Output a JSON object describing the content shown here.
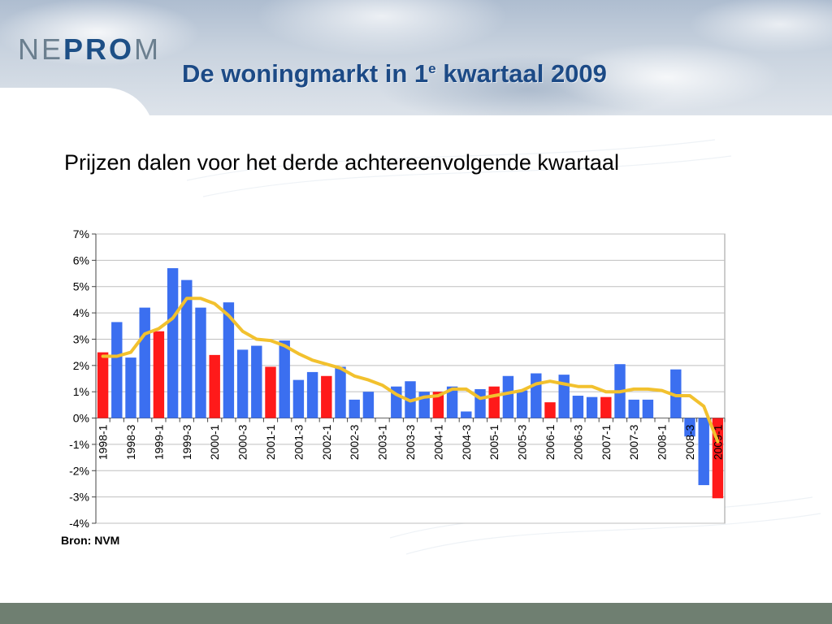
{
  "header": {
    "logo_pre": "NE",
    "logo_mid": "PRO",
    "logo_post": "M",
    "title_main": "De woningmarkt in 1",
    "title_sup": "e",
    "title_rest": " kwartaal 2009"
  },
  "subtitle": "Prijzen dalen voor het derde achtereenvolgende kwartaal",
  "source": "Bron: NVM",
  "colors": {
    "bar_blue": "#3b6ff0",
    "bar_red": "#ff1a1a",
    "line": "#f2c12e",
    "grid": "#bfbfbf",
    "footer": "#6f7f71",
    "title": "#1c4a86"
  },
  "chart_data": {
    "type": "bar",
    "ylim": [
      -4,
      7
    ],
    "yticks": [
      "7%",
      "6%",
      "5%",
      "4%",
      "3%",
      "2%",
      "1%",
      "0%",
      "-1%",
      "-2%",
      "-3%",
      "-4%"
    ],
    "grid": true,
    "x_tick_labels": [
      "1998-1",
      "1998-3",
      "1999-1",
      "1999-3",
      "2000-1",
      "2000-3",
      "2001-1",
      "2001-3",
      "2002-1",
      "2002-3",
      "2003-1",
      "2003-3",
      "2004-1",
      "2004-3",
      "2005-1",
      "2005-3",
      "2006-1",
      "2006-3",
      "2007-1",
      "2007-3",
      "2008-1",
      "2008-3",
      "2009-1"
    ],
    "quarters": [
      "1998-1",
      "1998-2",
      "1998-3",
      "1998-4",
      "1999-1",
      "1999-2",
      "1999-3",
      "1999-4",
      "2000-1",
      "2000-2",
      "2000-3",
      "2000-4",
      "2001-1",
      "2001-2",
      "2001-3",
      "2001-4",
      "2002-1",
      "2002-2",
      "2002-3",
      "2002-4",
      "2003-1",
      "2003-2",
      "2003-3",
      "2003-4",
      "2004-1",
      "2004-2",
      "2004-3",
      "2004-4",
      "2005-1",
      "2005-2",
      "2005-3",
      "2005-4",
      "2006-1",
      "2006-2",
      "2006-3",
      "2006-4",
      "2007-1",
      "2007-2",
      "2007-3",
      "2007-4",
      "2008-1",
      "2008-2",
      "2008-3",
      "2008-4",
      "2009-1"
    ],
    "series": [
      {
        "values": [
          2.5,
          3.65,
          2.3,
          4.2,
          3.3,
          5.7,
          5.25,
          4.2,
          2.4,
          4.4,
          2.6,
          2.75,
          1.95,
          2.95,
          1.45,
          1.75,
          1.6,
          1.95,
          0.7,
          1.0,
          0.0,
          1.2,
          1.4,
          1.0,
          1.0,
          1.2,
          0.25,
          1.1,
          1.2,
          1.6,
          1.05,
          1.7,
          0.6,
          1.65,
          0.85,
          0.8,
          0.8,
          2.05,
          0.7,
          0.7,
          0.0,
          1.85,
          -0.7,
          -2.55,
          -3.05
        ],
        "highlight": [
          true,
          false,
          false,
          false,
          true,
          false,
          false,
          false,
          true,
          false,
          false,
          false,
          true,
          false,
          false,
          false,
          true,
          false,
          false,
          false,
          true,
          false,
          false,
          false,
          true,
          false,
          false,
          false,
          true,
          false,
          false,
          false,
          true,
          false,
          false,
          false,
          true,
          false,
          false,
          false,
          true,
          false,
          false,
          false,
          true
        ]
      },
      {
        "type": "line",
        "values": [
          2.35,
          2.35,
          2.5,
          3.2,
          3.4,
          3.8,
          4.55,
          4.55,
          4.35,
          3.9,
          3.3,
          3.0,
          2.95,
          2.75,
          2.45,
          2.2,
          2.05,
          1.9,
          1.6,
          1.45,
          1.25,
          0.9,
          0.65,
          0.8,
          0.85,
          1.1,
          1.1,
          0.75,
          0.85,
          0.95,
          1.05,
          1.3,
          1.4,
          1.3,
          1.2,
          1.2,
          1.0,
          1.0,
          1.1,
          1.1,
          1.05,
          0.85,
          0.85,
          0.45,
          -0.9
        ]
      }
    ]
  }
}
